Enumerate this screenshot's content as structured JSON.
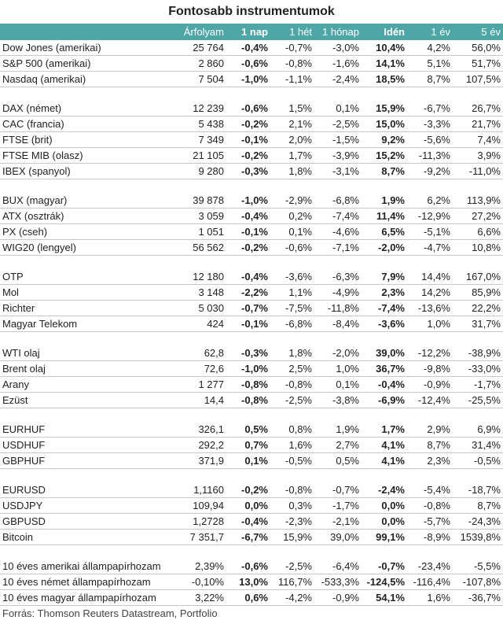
{
  "title": "Fontosabb instrumentumok",
  "headers": [
    "",
    "Árfolyam",
    "1 nap",
    "1 hét",
    "1 hónap",
    "Idén",
    "1 év",
    "5 év"
  ],
  "bold_headers": [
    2,
    5
  ],
  "groups": [
    [
      [
        "Dow Jones (amerikai)",
        "25 764",
        "-0,4%",
        "-0,7%",
        "-3,0%",
        "10,4%",
        "4,2%",
        "56,0%"
      ],
      [
        "S&P 500 (amerikai)",
        "2 860",
        "-0,6%",
        "-0,8%",
        "-1,6%",
        "14,1%",
        "5,1%",
        "51,7%"
      ],
      [
        "Nasdaq (amerikai)",
        "7 504",
        "-1,0%",
        "-1,1%",
        "-2,4%",
        "18,5%",
        "8,7%",
        "107,5%"
      ]
    ],
    [
      [
        "DAX (német)",
        "12 239",
        "-0,6%",
        "1,5%",
        "0,1%",
        "15,9%",
        "-6,7%",
        "26,7%"
      ],
      [
        "CAC (francia)",
        "5 438",
        "-0,2%",
        "2,1%",
        "-2,5%",
        "15,0%",
        "-3,3%",
        "21,7%"
      ],
      [
        "FTSE (brit)",
        "7 349",
        "-0,1%",
        "2,0%",
        "-1,5%",
        "9,2%",
        "-5,6%",
        "7,4%"
      ],
      [
        "FTSE MIB (olasz)",
        "21 105",
        "-0,2%",
        "1,7%",
        "-3,9%",
        "15,2%",
        "-11,3%",
        "3,9%"
      ],
      [
        "IBEX (spanyol)",
        "9 280",
        "-0,3%",
        "1,8%",
        "-3,1%",
        "8,7%",
        "-9,2%",
        "-11,0%"
      ]
    ],
    [
      [
        "BUX (magyar)",
        "39 878",
        "-1,0%",
        "-2,9%",
        "-6,8%",
        "1,9%",
        "6,2%",
        "113,9%"
      ],
      [
        "ATX (osztrák)",
        "3 059",
        "-0,4%",
        "0,2%",
        "-7,4%",
        "11,4%",
        "-12,9%",
        "27,2%"
      ],
      [
        "PX (cseh)",
        "1 051",
        "-0,1%",
        "0,1%",
        "-4,6%",
        "6,5%",
        "-5,1%",
        "6,6%"
      ],
      [
        "WIG20 (lengyel)",
        "56 562",
        "-0,2%",
        "-0,6%",
        "-7,1%",
        "-2,0%",
        "-4,7%",
        "10,8%"
      ]
    ],
    [
      [
        "OTP",
        "12 180",
        "-0,4%",
        "-3,6%",
        "-6,3%",
        "7,9%",
        "14,4%",
        "167,0%"
      ],
      [
        "Mol",
        "3 148",
        "-2,2%",
        "1,1%",
        "-4,9%",
        "2,3%",
        "14,2%",
        "85,9%"
      ],
      [
        "Richter",
        "5 030",
        "-0,7%",
        "-7,5%",
        "-11,8%",
        "-7,4%",
        "-13,6%",
        "22,2%"
      ],
      [
        "Magyar Telekom",
        "424",
        "-0,1%",
        "-6,8%",
        "-8,4%",
        "-3,6%",
        "1,0%",
        "31,7%"
      ]
    ],
    [
      [
        "WTI olaj",
        "62,8",
        "-0,3%",
        "1,8%",
        "-2,0%",
        "39,0%",
        "-12,2%",
        "-38,9%"
      ],
      [
        "Brent olaj",
        "72,6",
        "-1,0%",
        "2,5%",
        "1,0%",
        "36,7%",
        "-9,8%",
        "-33,0%"
      ],
      [
        "Arany",
        "1 277",
        "-0,8%",
        "-0,8%",
        "0,1%",
        "-0,4%",
        "-0,9%",
        "-1,7%"
      ],
      [
        "Ezüst",
        "14,4",
        "-0,8%",
        "-2,5%",
        "-3,8%",
        "-6,9%",
        "-12,4%",
        "-25,5%"
      ]
    ],
    [
      [
        "EURHUF",
        "326,1",
        "0,5%",
        "0,8%",
        "1,9%",
        "1,7%",
        "2,9%",
        "6,9%"
      ],
      [
        "USDHUF",
        "292,2",
        "0,7%",
        "1,6%",
        "2,7%",
        "4,1%",
        "8,7%",
        "31,4%"
      ],
      [
        "GBPHUF",
        "371,9",
        "0,1%",
        "-0,5%",
        "0,5%",
        "4,1%",
        "2,3%",
        "-0,5%"
      ]
    ],
    [
      [
        "EURUSD",
        "1,1160",
        "-0,2%",
        "-0,8%",
        "-0,7%",
        "-2,4%",
        "-5,4%",
        "-18,7%"
      ],
      [
        "USDJPY",
        "109,94",
        "0,0%",
        "0,3%",
        "-1,7%",
        "0,0%",
        "-0,8%",
        "8,7%"
      ],
      [
        "GBPUSD",
        "1,2728",
        "-0,4%",
        "-2,3%",
        "-2,1%",
        "0,0%",
        "-5,7%",
        "-24,3%"
      ],
      [
        "Bitcoin",
        "7 351,7",
        "-6,7%",
        "15,9%",
        "39,0%",
        "99,1%",
        "-8,9%",
        "1539,8%"
      ]
    ],
    [
      [
        "10 éves amerikai állampapírhozam",
        "2,39%",
        "-0,6%",
        "-2,5%",
        "-6,4%",
        "-0,7%",
        "-23,4%",
        "-5,5%"
      ],
      [
        "10 éves német állampapírhozam",
        "-0,10%",
        "13,0%",
        "116,7%",
        "-533,3%",
        "-124,5%",
        "-116,4%",
        "-107,8%"
      ],
      [
        "10 éves magyar állampapírhozam",
        "3,22%",
        "0,6%",
        "-4,2%",
        "-0,9%",
        "54,1%",
        "1,6%",
        "-36,7%"
      ]
    ]
  ],
  "source": "Forrás: Thomson Reuters Datastream, Portfolio"
}
